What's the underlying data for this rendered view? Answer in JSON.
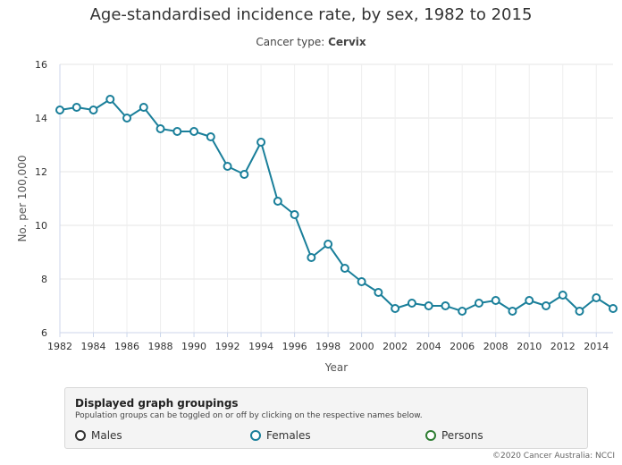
{
  "chart_data": {
    "type": "line",
    "title": "Age-standardised incidence rate, by sex, 1982 to 2015",
    "subtitle_prefix": "Cancer type: ",
    "subtitle_value": "Cervix",
    "xlabel": "Year",
    "ylabel": "No. per 100,000",
    "xlim": [
      1982,
      2015
    ],
    "ylim": [
      6,
      16
    ],
    "yticks": [
      6,
      8,
      10,
      12,
      14,
      16
    ],
    "xticks": [
      1982,
      1984,
      1986,
      1988,
      1990,
      1992,
      1994,
      1996,
      1998,
      2000,
      2002,
      2004,
      2006,
      2008,
      2010,
      2012,
      2014
    ],
    "grid": true,
    "x": [
      1982,
      1983,
      1984,
      1985,
      1986,
      1987,
      1988,
      1989,
      1990,
      1991,
      1992,
      1993,
      1994,
      1995,
      1996,
      1997,
      1998,
      1999,
      2000,
      2001,
      2002,
      2003,
      2004,
      2005,
      2006,
      2007,
      2008,
      2009,
      2010,
      2011,
      2012,
      2013,
      2014,
      2015
    ],
    "series": [
      {
        "name": "Females",
        "color": "#1a7f9a",
        "values": [
          14.3,
          14.4,
          14.3,
          14.7,
          14.0,
          14.4,
          13.6,
          13.5,
          13.5,
          13.3,
          12.2,
          11.9,
          13.1,
          10.9,
          10.4,
          8.8,
          9.3,
          8.4,
          7.9,
          7.5,
          6.9,
          7.1,
          7.0,
          7.0,
          6.8,
          7.1,
          7.2,
          6.8,
          7.2,
          7.0,
          7.4,
          6.8,
          7.3,
          6.9
        ]
      }
    ]
  },
  "legend": {
    "title": "Displayed graph groupings",
    "hint": "Population groups can be toggled on or off by clicking on the respective names below.",
    "items": [
      {
        "label": "Males",
        "color": "#333333"
      },
      {
        "label": "Females",
        "color": "#1a7f9a"
      },
      {
        "label": "Persons",
        "color": "#2e7d32"
      }
    ]
  },
  "credit": "©2020 Cancer Australia: NCCI"
}
